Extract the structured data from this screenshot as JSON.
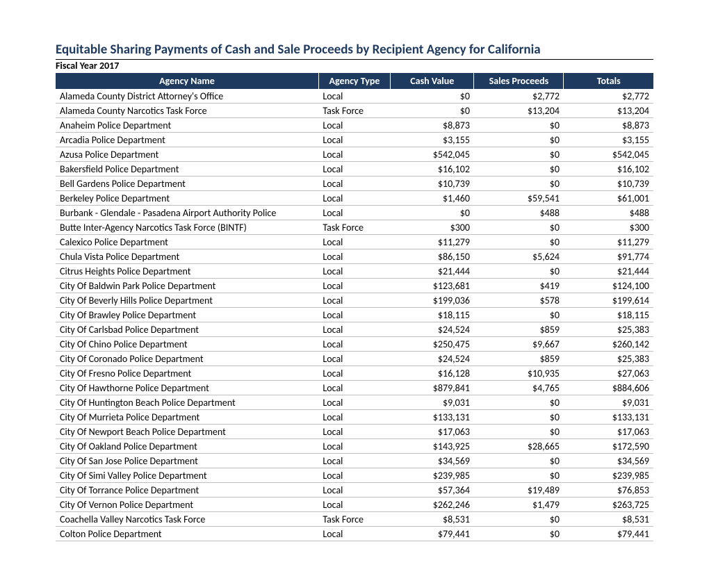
{
  "title": "Equitable Sharing Payments of Cash and Sale Proceeds by Recipient Agency for California",
  "subtitle": "Fiscal Year 2017",
  "columns": {
    "name": "Agency Name",
    "type": "Agency Type",
    "cash": "Cash Value",
    "sales": "Sales Proceeds",
    "totals": "Totals"
  },
  "rows": [
    {
      "name": "Alameda County District Attorney's Office",
      "type": "Local",
      "cash": "$0",
      "sales": "$2,772",
      "totals": "$2,772"
    },
    {
      "name": "Alameda County Narcotics Task Force",
      "type": "Task Force",
      "cash": "$0",
      "sales": "$13,204",
      "totals": "$13,204"
    },
    {
      "name": "Anaheim Police Department",
      "type": "Local",
      "cash": "$8,873",
      "sales": "$0",
      "totals": "$8,873"
    },
    {
      "name": "Arcadia Police Department",
      "type": "Local",
      "cash": "$3,155",
      "sales": "$0",
      "totals": "$3,155"
    },
    {
      "name": "Azusa Police Department",
      "type": "Local",
      "cash": "$542,045",
      "sales": "$0",
      "totals": "$542,045"
    },
    {
      "name": "Bakersfield Police Department",
      "type": "Local",
      "cash": "$16,102",
      "sales": "$0",
      "totals": "$16,102"
    },
    {
      "name": "Bell Gardens Police Department",
      "type": "Local",
      "cash": "$10,739",
      "sales": "$0",
      "totals": "$10,739"
    },
    {
      "name": "Berkeley Police Department",
      "type": "Local",
      "cash": "$1,460",
      "sales": "$59,541",
      "totals": "$61,001"
    },
    {
      "name": "Burbank - Glendale - Pasadena Airport Authority Police",
      "type": "Local",
      "cash": "$0",
      "sales": "$488",
      "totals": "$488"
    },
    {
      "name": "Butte Inter-Agency Narcotics Task Force (BINTF)",
      "type": "Task Force",
      "cash": "$300",
      "sales": "$0",
      "totals": "$300"
    },
    {
      "name": "Calexico Police Department",
      "type": "Local",
      "cash": "$11,279",
      "sales": "$0",
      "totals": "$11,279"
    },
    {
      "name": "Chula Vista Police Department",
      "type": "Local",
      "cash": "$86,150",
      "sales": "$5,624",
      "totals": "$91,774"
    },
    {
      "name": "Citrus Heights Police Department",
      "type": "Local",
      "cash": "$21,444",
      "sales": "$0",
      "totals": "$21,444"
    },
    {
      "name": "City Of Baldwin Park Police Department",
      "type": "Local",
      "cash": "$123,681",
      "sales": "$419",
      "totals": "$124,100"
    },
    {
      "name": "City Of Beverly Hills Police Department",
      "type": "Local",
      "cash": "$199,036",
      "sales": "$578",
      "totals": "$199,614"
    },
    {
      "name": "City Of Brawley Police Department",
      "type": "Local",
      "cash": "$18,115",
      "sales": "$0",
      "totals": "$18,115"
    },
    {
      "name": "City Of Carlsbad Police Department",
      "type": "Local",
      "cash": "$24,524",
      "sales": "$859",
      "totals": "$25,383"
    },
    {
      "name": "City Of Chino Police Department",
      "type": "Local",
      "cash": "$250,475",
      "sales": "$9,667",
      "totals": "$260,142"
    },
    {
      "name": "City Of Coronado Police Department",
      "type": "Local",
      "cash": "$24,524",
      "sales": "$859",
      "totals": "$25,383"
    },
    {
      "name": "City Of Fresno Police Department",
      "type": "Local",
      "cash": "$16,128",
      "sales": "$10,935",
      "totals": "$27,063"
    },
    {
      "name": "City Of Hawthorne Police Department",
      "type": "Local",
      "cash": "$879,841",
      "sales": "$4,765",
      "totals": "$884,606"
    },
    {
      "name": "City Of Huntington Beach Police Department",
      "type": "Local",
      "cash": "$9,031",
      "sales": "$0",
      "totals": "$9,031"
    },
    {
      "name": "City Of Murrieta Police Department",
      "type": "Local",
      "cash": "$133,131",
      "sales": "$0",
      "totals": "$133,131"
    },
    {
      "name": "City Of Newport Beach Police Department",
      "type": "Local",
      "cash": "$17,063",
      "sales": "$0",
      "totals": "$17,063"
    },
    {
      "name": "City Of Oakland Police Department",
      "type": "Local",
      "cash": "$143,925",
      "sales": "$28,665",
      "totals": "$172,590"
    },
    {
      "name": "City Of San Jose Police Department",
      "type": "Local",
      "cash": "$34,569",
      "sales": "$0",
      "totals": "$34,569"
    },
    {
      "name": "City Of Simi Valley Police Department",
      "type": "Local",
      "cash": "$239,985",
      "sales": "$0",
      "totals": "$239,985"
    },
    {
      "name": "City Of Torrance Police Department",
      "type": "Local",
      "cash": "$57,364",
      "sales": "$19,489",
      "totals": "$76,853"
    },
    {
      "name": "City Of Vernon Police Department",
      "type": "Local",
      "cash": "$262,246",
      "sales": "$1,479",
      "totals": "$263,725"
    },
    {
      "name": "Coachella Valley Narcotics Task Force",
      "type": "Task Force",
      "cash": "$8,531",
      "sales": "$0",
      "totals": "$8,531"
    },
    {
      "name": "Colton Police Department",
      "type": "Local",
      "cash": "$79,441",
      "sales": "$0",
      "totals": "$79,441"
    }
  ],
  "style": {
    "header_bg": "#1f3a5f",
    "header_fg": "#ffffff",
    "row_border": "#bfbfbf",
    "title_color": "#1f3a5f"
  }
}
